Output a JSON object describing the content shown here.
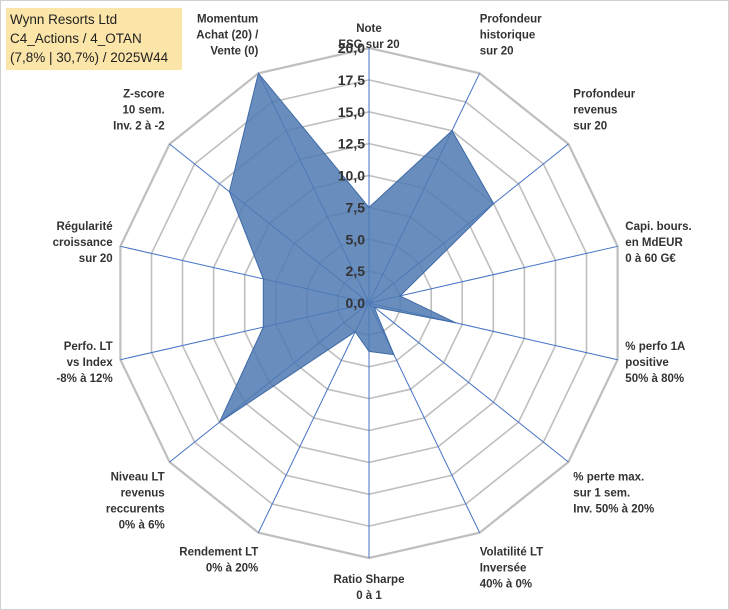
{
  "info_box": {
    "line1": "Wynn Resorts Ltd",
    "line2": "C4_Actions / 4_OTAN",
    "line3": "(7,8% | 30,7%) / 2025W44"
  },
  "colors": {
    "fill": "#4f7ab3",
    "stroke": "#3f6aa8",
    "grid": "#bfbfbf",
    "spoke": "#4472c4"
  },
  "chart_data": {
    "type": "radar",
    "rlim": [
      0,
      20
    ],
    "ticks": [
      "0,0",
      "2,5",
      "5,0",
      "7,5",
      "10,0",
      "12,5",
      "15,0",
      "17,5",
      "20,0"
    ],
    "categories": [
      [
        "Note",
        "ESG sur 20"
      ],
      [
        "Profondeur",
        "historique",
        "sur 20"
      ],
      [
        "Profondeur",
        "revenus",
        "sur 20"
      ],
      [
        "Capi. bours.",
        "en MdEUR",
        "0 à 60 G€"
      ],
      [
        "% perfo 1A",
        "positive",
        "50% à 80%"
      ],
      [
        "% perte max.",
        "sur 1 sem.",
        "Inv. 50% à 20%"
      ],
      [
        "Volatilité LT",
        "Inversée",
        "40% à 0%"
      ],
      [
        "Ratio Sharpe",
        "0 à 1"
      ],
      [
        "Rendement LT",
        "0% à 20%"
      ],
      [
        "Niveau LT",
        "revenus",
        "reccurents",
        "0% à 6%"
      ],
      [
        "Perfo. LT",
        "vs Index",
        "-8% à 12%"
      ],
      [
        "Régularité",
        "croissance",
        "sur 20"
      ],
      [
        "Z-score",
        "10 sem.",
        "Inv. 2 à -2"
      ],
      [
        "Momentum",
        "Achat (20) /",
        "Vente (0)"
      ]
    ],
    "series": [
      {
        "name": "Wynn Resorts Ltd",
        "values": [
          7.5,
          15.0,
          12.5,
          2.5,
          7.0,
          0.5,
          4.5,
          3.8,
          2.5,
          15.0,
          8.5,
          8.5,
          14.0,
          20.0
        ]
      }
    ]
  }
}
